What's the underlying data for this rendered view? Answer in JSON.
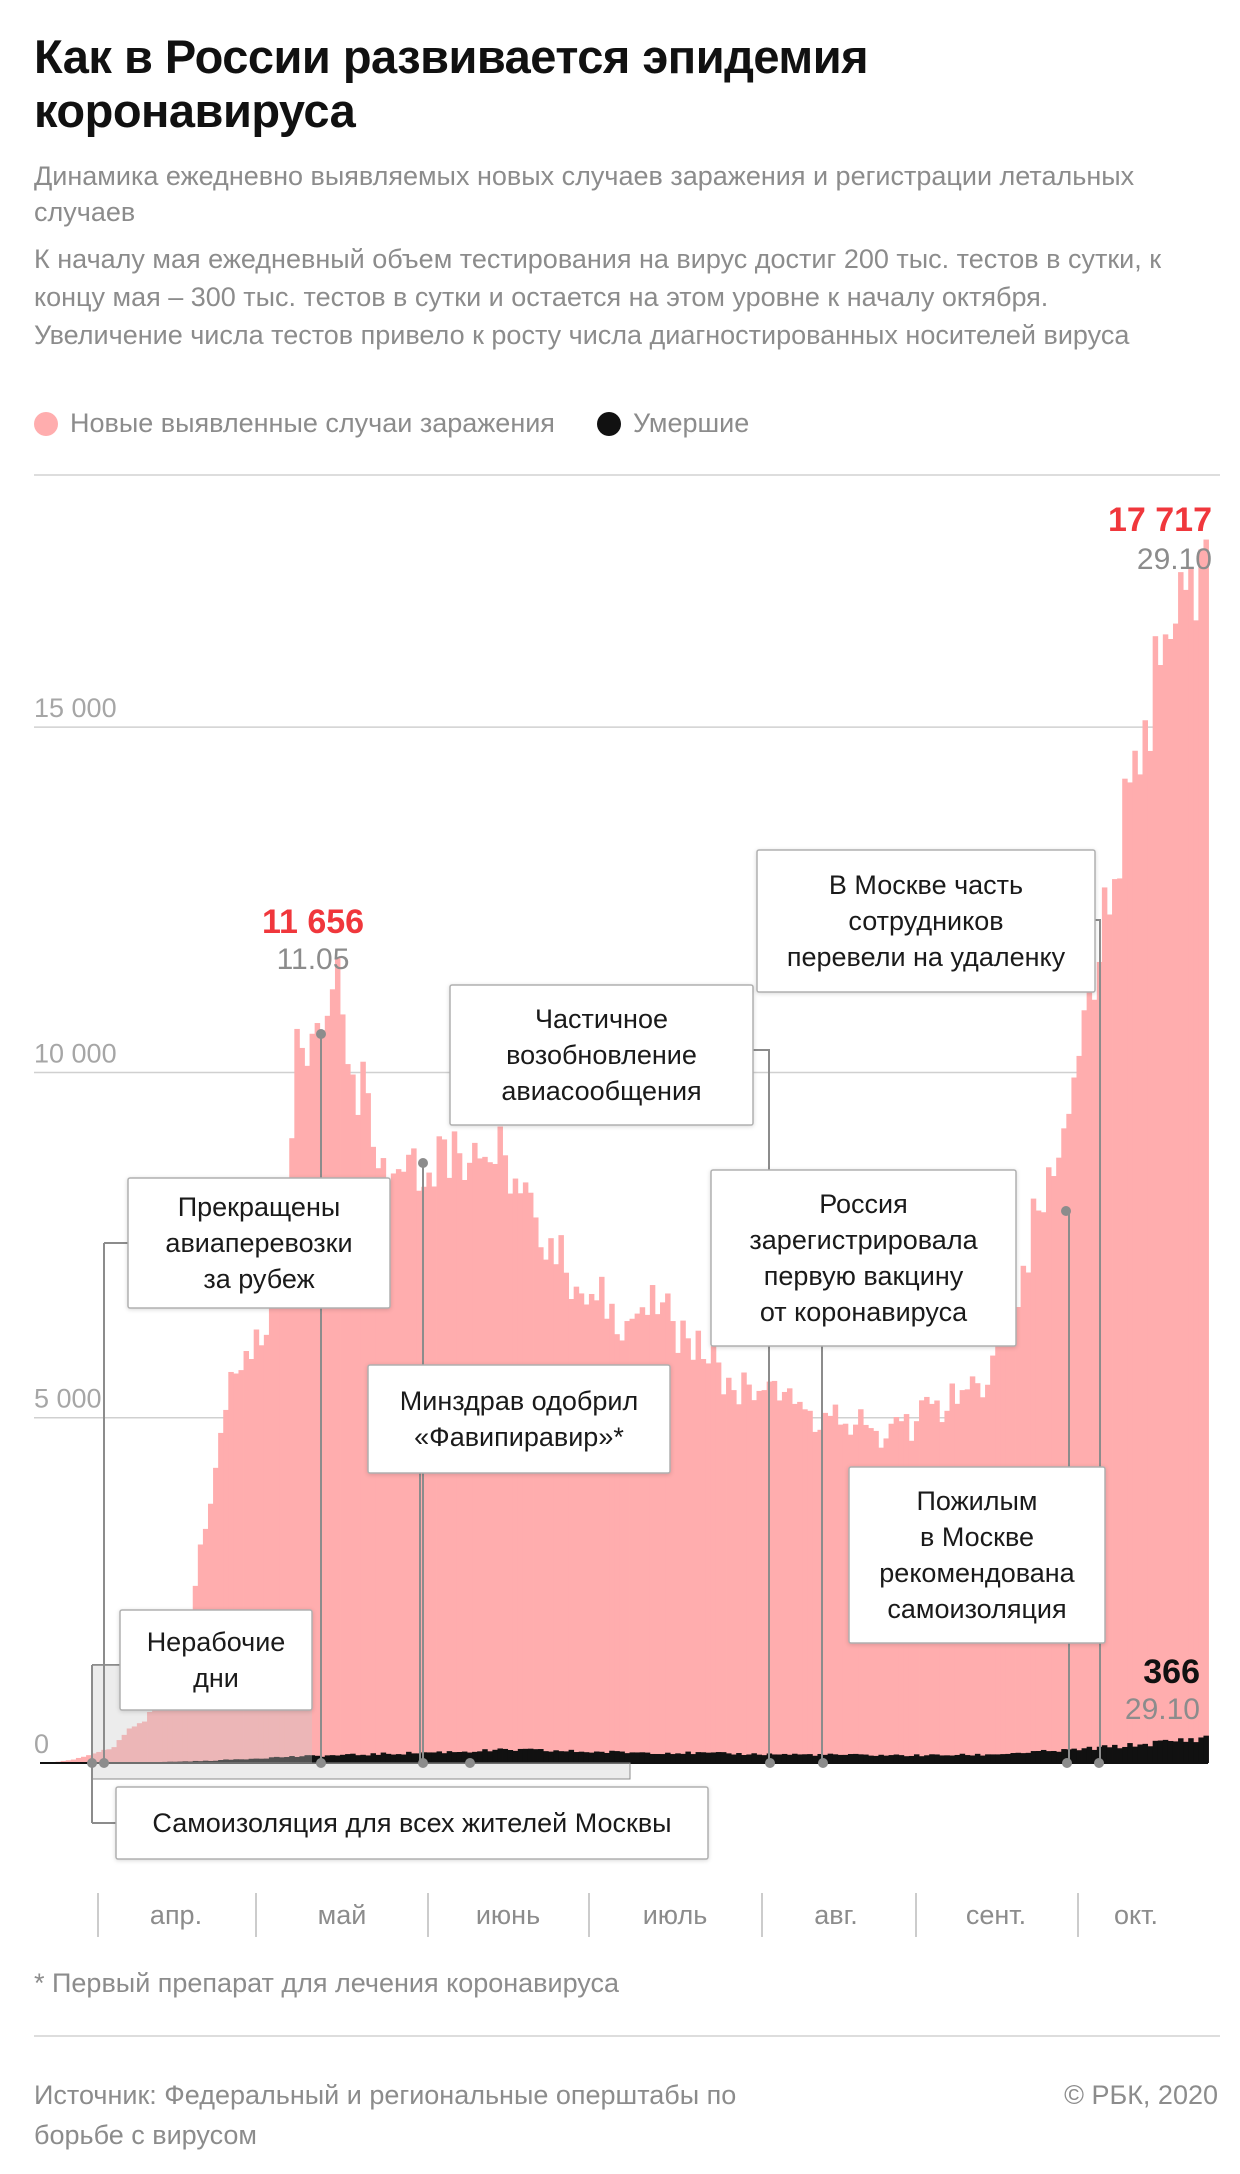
{
  "title": "Как в России развивается эпидемия коронавируса",
  "subtitle": "Динамика ежедневно выявляемых новых случаев заражения и регистрации летальных случаев",
  "description": "К началу мая ежедневный объем тестирования на вирус достиг 200 тыс. тестов в сутки, к концу мая – 300 тыс. тестов в сутки и остается на этом уровне к началу октября. Увеличение числа тестов привело к росту числа диагностированных носителей вируса",
  "colors": {
    "cases": "#ffadae",
    "deaths": "#111111",
    "highlight": "#f0373c",
    "muted": "#8c8c8c",
    "grid": "#d0d0d0"
  },
  "footnote": "* Первый препарат для лечения коронавируса",
  "source": "Источник: Федеральный и региональные оперштабы по борьбе с вирусом",
  "copyright": "© РБК, 2020",
  "chart_data": {
    "type": "bar",
    "x_range": [
      "2020-03-15",
      "2020-10-29"
    ],
    "ylim": [
      0,
      18000
    ],
    "yticks": [
      0,
      5000,
      10000,
      15000
    ],
    "ytick_labels": [
      "0",
      "5 000",
      "10 000",
      "15 000"
    ],
    "months": [
      "апр.",
      "май",
      "июнь",
      "июль",
      "авг.",
      "сент.",
      "окт."
    ],
    "series": [
      {
        "name": "Новые выявленные случаи заражения",
        "color": "#ffadae",
        "values": [
          [
            "2020-03-15",
            0
          ],
          [
            "2020-03-20",
            50
          ],
          [
            "2020-03-25",
            160
          ],
          [
            "2020-03-28",
            230
          ],
          [
            "2020-03-31",
            500
          ],
          [
            "2020-04-03",
            600
          ],
          [
            "2020-04-06",
            950
          ],
          [
            "2020-04-09",
            1450
          ],
          [
            "2020-04-12",
            2190
          ],
          [
            "2020-04-15",
            3390
          ],
          [
            "2020-04-18",
            4780
          ],
          [
            "2020-04-21",
            5640
          ],
          [
            "2020-04-24",
            5850
          ],
          [
            "2020-04-27",
            6200
          ],
          [
            "2020-04-30",
            7100
          ],
          [
            "2020-05-03",
            10630
          ],
          [
            "2020-05-06",
            10560
          ],
          [
            "2020-05-09",
            10820
          ],
          [
            "2020-05-11",
            11656
          ],
          [
            "2020-05-14",
            9970
          ],
          [
            "2020-05-17",
            9700
          ],
          [
            "2020-05-20",
            8760
          ],
          [
            "2020-05-23",
            8600
          ],
          [
            "2020-05-26",
            8900
          ],
          [
            "2020-05-29",
            8550
          ],
          [
            "2020-06-01",
            9030
          ],
          [
            "2020-06-04",
            8830
          ],
          [
            "2020-06-07",
            8980
          ],
          [
            "2020-06-10",
            8700
          ],
          [
            "2020-06-13",
            8800
          ],
          [
            "2020-06-16",
            8250
          ],
          [
            "2020-06-19",
            7900
          ],
          [
            "2020-06-22",
            7600
          ],
          [
            "2020-06-25",
            7100
          ],
          [
            "2020-06-28",
            6800
          ],
          [
            "2020-07-01",
            6700
          ],
          [
            "2020-07-04",
            6650
          ],
          [
            "2020-07-07",
            6400
          ],
          [
            "2020-07-10",
            6600
          ],
          [
            "2020-07-13",
            6500
          ],
          [
            "2020-07-16",
            6400
          ],
          [
            "2020-07-19",
            6150
          ],
          [
            "2020-07-22",
            5850
          ],
          [
            "2020-07-25",
            5800
          ],
          [
            "2020-07-28",
            5400
          ],
          [
            "2020-07-31",
            5480
          ],
          [
            "2020-08-03",
            5400
          ],
          [
            "2020-08-06",
            5250
          ],
          [
            "2020-08-09",
            5200
          ],
          [
            "2020-08-12",
            5100
          ],
          [
            "2020-08-15",
            5070
          ],
          [
            "2020-08-18",
            4900
          ],
          [
            "2020-08-21",
            4900
          ],
          [
            "2020-08-24",
            4850
          ],
          [
            "2020-08-27",
            4700
          ],
          [
            "2020-08-30",
            4950
          ],
          [
            "2020-09-02",
            4950
          ],
          [
            "2020-09-05",
            5200
          ],
          [
            "2020-09-08",
            5100
          ],
          [
            "2020-09-11",
            5400
          ],
          [
            "2020-09-14",
            5500
          ],
          [
            "2020-09-17",
            5900
          ],
          [
            "2020-09-20",
            6200
          ],
          [
            "2020-09-23",
            7200
          ],
          [
            "2020-09-26",
            8000
          ],
          [
            "2020-09-29",
            8500
          ],
          [
            "2020-10-02",
            9400
          ],
          [
            "2020-10-05",
            10900
          ],
          [
            "2020-10-08",
            11600
          ],
          [
            "2020-10-11",
            12800
          ],
          [
            "2020-10-14",
            14200
          ],
          [
            "2020-10-17",
            15100
          ],
          [
            "2020-10-20",
            15900
          ],
          [
            "2020-10-23",
            16500
          ],
          [
            "2020-10-26",
            17300
          ],
          [
            "2020-10-29",
            17717
          ]
        ]
      },
      {
        "name": "Умершие",
        "color": "#111111",
        "values": [
          [
            "2020-03-15",
            0
          ],
          [
            "2020-04-01",
            5
          ],
          [
            "2020-04-15",
            30
          ],
          [
            "2020-05-01",
            90
          ],
          [
            "2020-05-15",
            120
          ],
          [
            "2020-06-01",
            160
          ],
          [
            "2020-06-15",
            190
          ],
          [
            "2020-07-01",
            160
          ],
          [
            "2020-07-15",
            150
          ],
          [
            "2020-08-01",
            130
          ],
          [
            "2020-08-15",
            120
          ],
          [
            "2020-09-01",
            110
          ],
          [
            "2020-09-15",
            120
          ],
          [
            "2020-10-01",
            180
          ],
          [
            "2020-10-15",
            260
          ],
          [
            "2020-10-29",
            366
          ]
        ]
      }
    ],
    "peak_labels": [
      {
        "value": "11 656",
        "date": "11.05"
      },
      {
        "value": "17 717",
        "date": "29.10"
      },
      {
        "value": "366",
        "date": "29.10"
      }
    ],
    "annotations": [
      {
        "lines": [
          "Нерабочие",
          "дни"
        ]
      },
      {
        "lines": [
          "Самоизоляция для всех жителей Москвы"
        ]
      },
      {
        "lines": [
          "Прекращены",
          "авиаперевозки",
          "за рубеж"
        ]
      },
      {
        "lines": [
          "Минздрав одобрил",
          "«Фавипиравир»*"
        ]
      },
      {
        "lines": [
          "Частичное",
          "возобновление",
          "авиасообщения"
        ]
      },
      {
        "lines": [
          "Россия",
          "зарегистрировала",
          "первую вакцину",
          "от коронавируса"
        ]
      },
      {
        "lines": [
          "В Москве часть",
          "сотрудников",
          "перевели на удаленку"
        ]
      },
      {
        "lines": [
          "Пожилым",
          "в Москве",
          "рекомендована",
          "самоизоляция"
        ]
      }
    ]
  }
}
